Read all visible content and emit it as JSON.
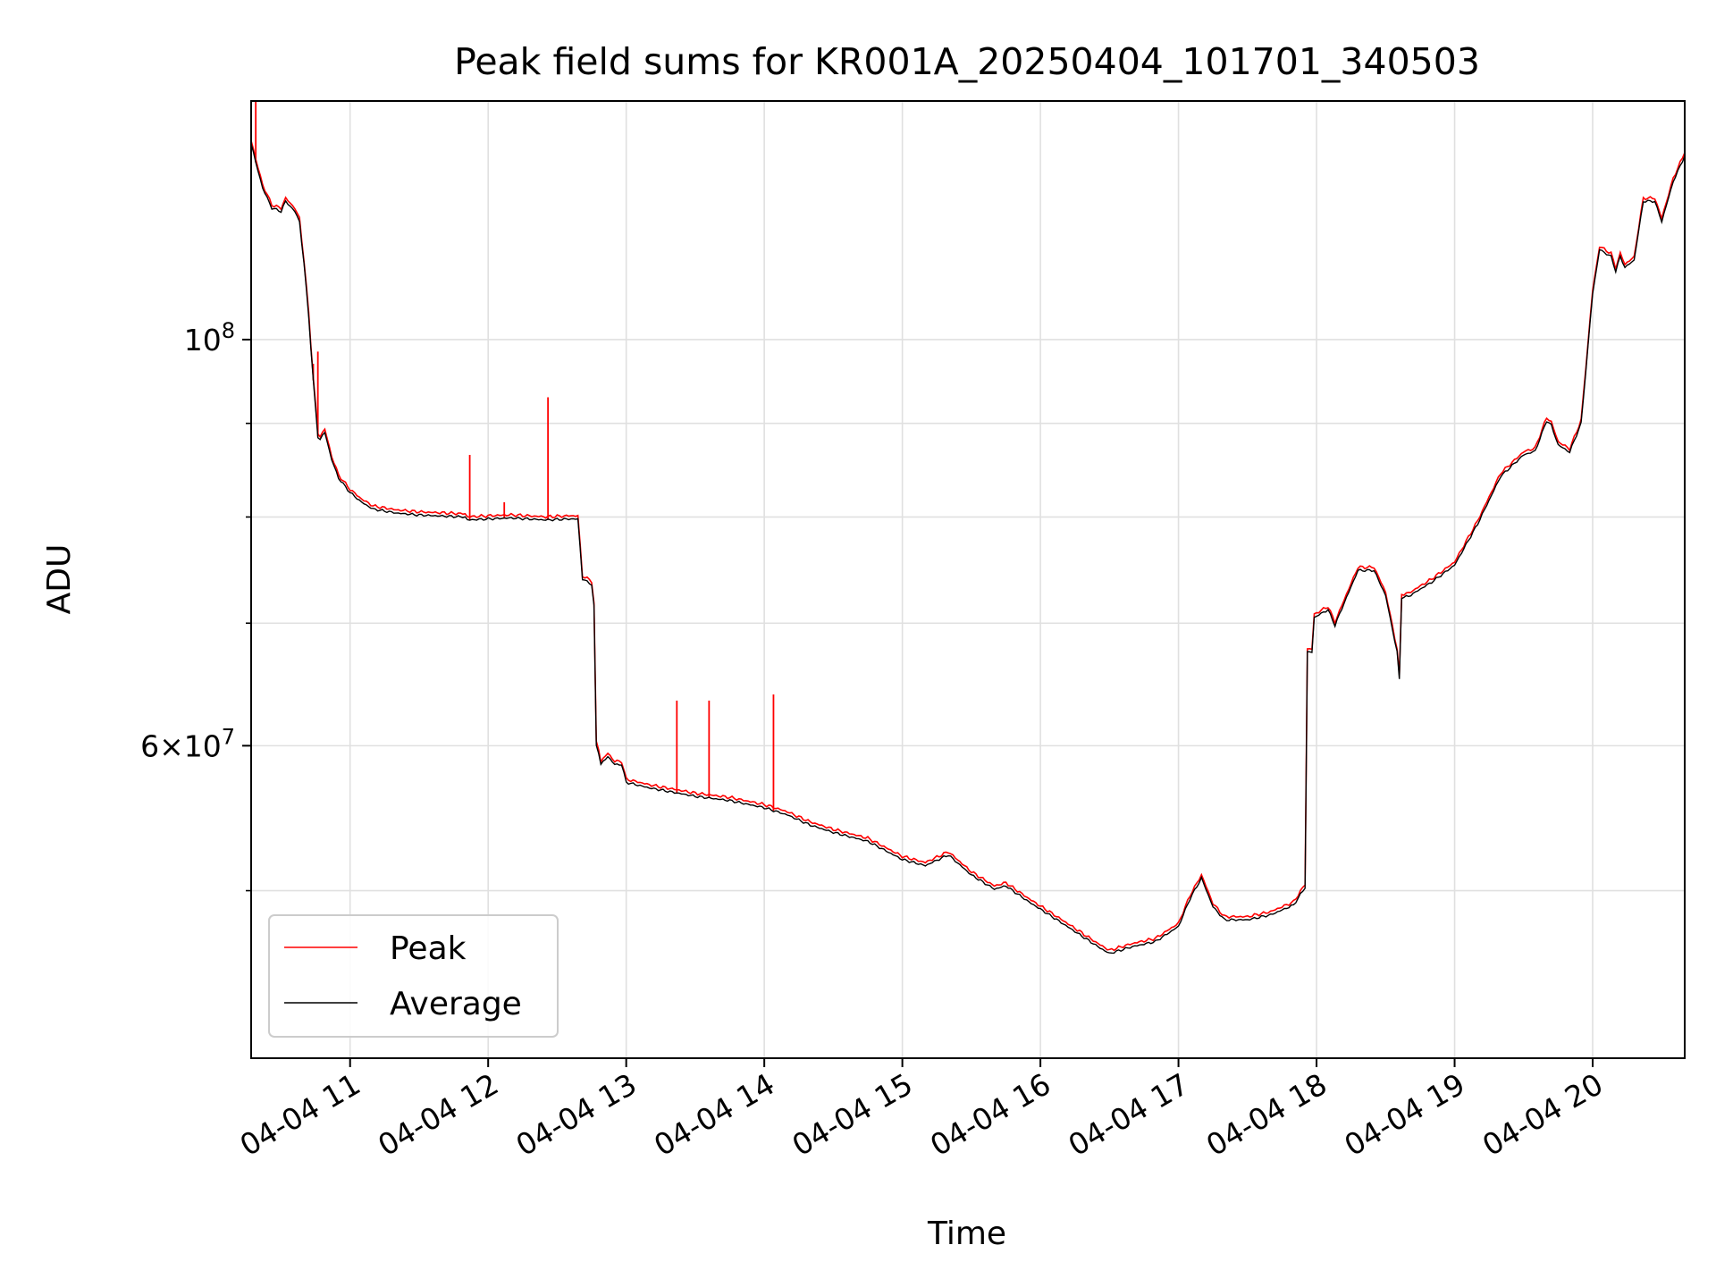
{
  "chart_data": {
    "type": "line",
    "title": "Peak field sums for KR001A_20250404_101701_340503",
    "xlabel": "Time",
    "ylabel": "ADU",
    "y_scale": "log",
    "xlim": [
      "2025-04-04 10:17",
      "2025-04-04 20:40"
    ],
    "ylim": [
      40500000,
      135000000
    ],
    "grid": true,
    "legend": {
      "placement": "lower-left",
      "entries": [
        "Peak",
        "Average"
      ]
    },
    "x_ticks": [
      {
        "t": "2025-04-04 11:00",
        "label": "04-04 11"
      },
      {
        "t": "2025-04-04 12:00",
        "label": "04-04 12"
      },
      {
        "t": "2025-04-04 13:00",
        "label": "04-04 13"
      },
      {
        "t": "2025-04-04 14:00",
        "label": "04-04 14"
      },
      {
        "t": "2025-04-04 15:00",
        "label": "04-04 15"
      },
      {
        "t": "2025-04-04 16:00",
        "label": "04-04 16"
      },
      {
        "t": "2025-04-04 17:00",
        "label": "04-04 17"
      },
      {
        "t": "2025-04-04 18:00",
        "label": "04-04 18"
      },
      {
        "t": "2025-04-04 19:00",
        "label": "04-04 19"
      },
      {
        "t": "2025-04-04 20:00",
        "label": "04-04 20"
      }
    ],
    "y_major_ticks": [
      {
        "v": 60000000,
        "base": "6",
        "exp": "7",
        "times": "×",
        "ten": "10"
      },
      {
        "v": 100000000,
        "base": "",
        "exp": "8",
        "times": "",
        "ten": "10"
      }
    ],
    "y_minor_gridlines": [
      50000000,
      70000000,
      80000000,
      90000000
    ],
    "series": [
      {
        "name": "Average",
        "color": "#000000",
        "points": [
          [
            "2025-04-04 10:17",
            128000000
          ],
          [
            "2025-04-04 10:19",
            125000000
          ],
          [
            "2025-04-04 10:22",
            121000000
          ],
          [
            "2025-04-04 10:26",
            118000000
          ],
          [
            "2025-04-04 10:30",
            117500000
          ],
          [
            "2025-04-04 10:32",
            119000000
          ],
          [
            "2025-04-04 10:36",
            117500000
          ],
          [
            "2025-04-04 10:38",
            116000000
          ],
          [
            "2025-04-04 10:40",
            110000000
          ],
          [
            "2025-04-04 10:42",
            103000000
          ],
          [
            "2025-04-04 10:44",
            95000000
          ],
          [
            "2025-04-04 10:46",
            88500000
          ],
          [
            "2025-04-04 10:47",
            88200000
          ],
          [
            "2025-04-04 10:49",
            89000000
          ],
          [
            "2025-04-04 10:52",
            86000000
          ],
          [
            "2025-04-04 10:55",
            84000000
          ],
          [
            "2025-04-04 11:00",
            82500000
          ],
          [
            "2025-04-04 11:05",
            81500000
          ],
          [
            "2025-04-04 11:10",
            80800000
          ],
          [
            "2025-04-04 11:20",
            80400000
          ],
          [
            "2025-04-04 11:30",
            80200000
          ],
          [
            "2025-04-04 11:40",
            80100000
          ],
          [
            "2025-04-04 11:50",
            80000000
          ],
          [
            "2025-04-04 11:51",
            79700000
          ],
          [
            "2025-04-04 12:00",
            79800000
          ],
          [
            "2025-04-04 12:10",
            79900000
          ],
          [
            "2025-04-04 12:25",
            79700000
          ],
          [
            "2025-04-04 12:35",
            79800000
          ],
          [
            "2025-04-04 12:39",
            79800000
          ],
          [
            "2025-04-04 12:41",
            74000000
          ],
          [
            "2025-04-04 12:45",
            73500000
          ],
          [
            "2025-04-04 12:46",
            71500000
          ],
          [
            "2025-04-04 12:47",
            60000000
          ],
          [
            "2025-04-04 12:48",
            59500000
          ],
          [
            "2025-04-04 12:49",
            58600000
          ],
          [
            "2025-04-04 12:52",
            59200000
          ],
          [
            "2025-04-04 12:55",
            58600000
          ],
          [
            "2025-04-04 12:58",
            58600000
          ],
          [
            "2025-04-04 13:00",
            57300000
          ],
          [
            "2025-04-04 13:10",
            56900000
          ],
          [
            "2025-04-04 13:20",
            56600000
          ],
          [
            "2025-04-04 13:30",
            56300000
          ],
          [
            "2025-04-04 13:45",
            56000000
          ],
          [
            "2025-04-04 14:00",
            55500000
          ],
          [
            "2025-04-04 14:10",
            55000000
          ],
          [
            "2025-04-04 14:20",
            54300000
          ],
          [
            "2025-04-04 14:30",
            53800000
          ],
          [
            "2025-04-04 14:45",
            53200000
          ],
          [
            "2025-04-04 15:00",
            52000000
          ],
          [
            "2025-04-04 15:10",
            51600000
          ],
          [
            "2025-04-04 15:20",
            52300000
          ],
          [
            "2025-04-04 15:30",
            51000000
          ],
          [
            "2025-04-04 15:40",
            50100000
          ],
          [
            "2025-04-04 15:45",
            50300000
          ],
          [
            "2025-04-04 15:55",
            49300000
          ],
          [
            "2025-04-04 16:05",
            48400000
          ],
          [
            "2025-04-04 16:15",
            47500000
          ],
          [
            "2025-04-04 16:25",
            46600000
          ],
          [
            "2025-04-04 16:30",
            46200000
          ],
          [
            "2025-04-04 16:40",
            46600000
          ],
          [
            "2025-04-04 16:50",
            46900000
          ],
          [
            "2025-04-04 17:00",
            47800000
          ],
          [
            "2025-04-04 17:05",
            49500000
          ],
          [
            "2025-04-04 17:10",
            50800000
          ],
          [
            "2025-04-04 17:15",
            49000000
          ],
          [
            "2025-04-04 17:20",
            48200000
          ],
          [
            "2025-04-04 17:30",
            48200000
          ],
          [
            "2025-04-04 17:40",
            48500000
          ],
          [
            "2025-04-04 17:50",
            49100000
          ],
          [
            "2025-04-04 17:55",
            50200000
          ],
          [
            "2025-04-04 17:56",
            67500000
          ],
          [
            "2025-04-04 17:58",
            67500000
          ],
          [
            "2025-04-04 17:59",
            70500000
          ],
          [
            "2025-04-04 18:05",
            71200000
          ],
          [
            "2025-04-04 18:08",
            69800000
          ],
          [
            "2025-04-04 18:12",
            71800000
          ],
          [
            "2025-04-04 18:18",
            74800000
          ],
          [
            "2025-04-04 18:25",
            74800000
          ],
          [
            "2025-04-04 18:30",
            72500000
          ],
          [
            "2025-04-04 18:35",
            67500000
          ],
          [
            "2025-04-04 18:36",
            65200000
          ],
          [
            "2025-04-04 18:37",
            72300000
          ],
          [
            "2025-04-04 18:40",
            72400000
          ],
          [
            "2025-04-04 18:50",
            73700000
          ],
          [
            "2025-04-04 19:00",
            75300000
          ],
          [
            "2025-04-04 19:10",
            79300000
          ],
          [
            "2025-04-04 19:20",
            84200000
          ],
          [
            "2025-04-04 19:30",
            86500000
          ],
          [
            "2025-04-04 19:35",
            86900000
          ],
          [
            "2025-04-04 19:40",
            90300000
          ],
          [
            "2025-04-04 19:42",
            89800000
          ],
          [
            "2025-04-04 19:45",
            87600000
          ],
          [
            "2025-04-04 19:50",
            86800000
          ],
          [
            "2025-04-04 19:55",
            90000000
          ],
          [
            "2025-04-04 20:00",
            106000000
          ],
          [
            "2025-04-04 20:03",
            112000000
          ],
          [
            "2025-04-04 20:08",
            111000000
          ],
          [
            "2025-04-04 20:10",
            109000000
          ],
          [
            "2025-04-04 20:12",
            111000000
          ],
          [
            "2025-04-04 20:14",
            109500000
          ],
          [
            "2025-04-04 20:18",
            110500000
          ],
          [
            "2025-04-04 20:22",
            119000000
          ],
          [
            "2025-04-04 20:27",
            119000000
          ],
          [
            "2025-04-04 20:30",
            116000000
          ],
          [
            "2025-04-04 20:35",
            122000000
          ],
          [
            "2025-04-04 20:40",
            126000000
          ]
        ]
      },
      {
        "name": "Peak",
        "color": "#ff0000",
        "spikes": [
          [
            "2025-04-04 10:19",
            135000000
          ],
          [
            "2025-04-04 10:44",
            97000000
          ],
          [
            "2025-04-04 10:46",
            98500000
          ],
          [
            "2025-04-04 11:52",
            86500000
          ],
          [
            "2025-04-04 12:07",
            81500000
          ],
          [
            "2025-04-04 12:26",
            93000000
          ],
          [
            "2025-04-04 13:22",
            63500000
          ],
          [
            "2025-04-04 13:36",
            63500000
          ],
          [
            "2025-04-04 14:04",
            64000000
          ]
        ]
      }
    ]
  }
}
